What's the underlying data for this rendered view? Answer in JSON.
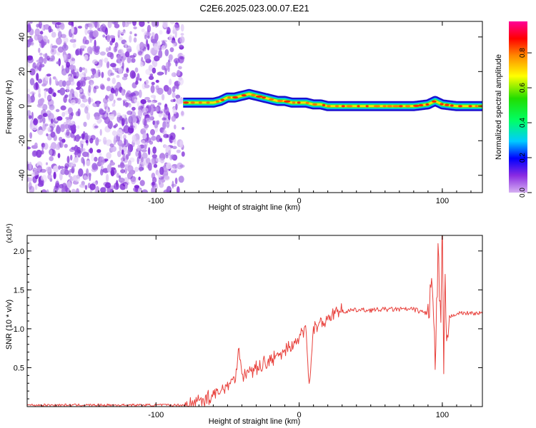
{
  "figure": {
    "title": "C2E6.2025.023.00.07.E21"
  },
  "chart_data": [
    {
      "type": "heatmap",
      "title": "C2E6.2025.023.00.07.E21",
      "xlabel": "Height of straight line (km)",
      "ylabel": "Frequency (Hz)",
      "xlim": [
        -190,
        128
      ],
      "ylim": [
        -50,
        49
      ],
      "xticks": [
        -100,
        0,
        100
      ],
      "xtick_labels": [
        "-100",
        "0",
        "100"
      ],
      "yticks": [
        -40,
        -20,
        0,
        20,
        40
      ],
      "ytick_labels": [
        "-40",
        "-20",
        "0",
        "20",
        "40"
      ],
      "colorbar": {
        "label": "Normalized spectral amplitude",
        "range": [
          0,
          0.98
        ],
        "ticks": [
          0,
          0.2,
          0.4,
          0.6,
          0.8
        ],
        "tick_labels": [
          "0.0",
          "0.2",
          "0.4",
          "0.6",
          "0.8"
        ]
      },
      "noise_region_x": [
        -190,
        -81
      ],
      "ridge": {
        "x": [
          -81,
          -75,
          -70,
          -65,
          -60,
          -55,
          -50,
          -45,
          -40,
          -35,
          -30,
          -25,
          -20,
          -15,
          -10,
          -5,
          0,
          5,
          10,
          15,
          20,
          30,
          40,
          50,
          60,
          70,
          80,
          90,
          95,
          100,
          110,
          120,
          128
        ],
        "freq": [
          2,
          2,
          2,
          2,
          2,
          3,
          5,
          5,
          6,
          7,
          6,
          5,
          4,
          3,
          3,
          2,
          2,
          2,
          1,
          1,
          0,
          0,
          0,
          0,
          0,
          0,
          0,
          1,
          3,
          1,
          0,
          0,
          0
        ]
      }
    },
    {
      "type": "line",
      "xlabel": "Height of straight line (km)",
      "ylabel": "SNR (10 * v/v)",
      "y_multiplier": "(x10⁴)",
      "xlim": [
        -190,
        128
      ],
      "ylim": [
        0,
        2.2
      ],
      "xticks": [
        -100,
        0,
        100
      ],
      "xtick_labels": [
        "-100",
        "0",
        "100"
      ],
      "yticks": [
        0.5,
        1.0,
        1.5,
        2.0
      ],
      "ytick_labels": [
        "0.5",
        "1.0",
        "1.5",
        "2.0"
      ],
      "color": "#e8413c",
      "series": [
        {
          "x": [
            -190,
            -150,
            -100,
            -80,
            -75,
            -70,
            -65,
            -60,
            -55,
            -50,
            -45,
            -42,
            -40,
            -35,
            -30,
            -25,
            -20,
            -15,
            -10,
            -5,
            0,
            5,
            7,
            10,
            15,
            20,
            25,
            30,
            40,
            50,
            60,
            70,
            80,
            85,
            90,
            93,
            95,
            97,
            99,
            100,
            101,
            102,
            103,
            105,
            110,
            120,
            128
          ],
          "y": [
            0.02,
            0.02,
            0.02,
            0.02,
            0.04,
            0.08,
            0.1,
            0.15,
            0.18,
            0.3,
            0.35,
            0.75,
            0.4,
            0.45,
            0.5,
            0.55,
            0.6,
            0.65,
            0.72,
            0.8,
            0.88,
            1.0,
            0.3,
            1.0,
            1.05,
            1.15,
            1.22,
            1.22,
            1.24,
            1.24,
            1.25,
            1.25,
            1.25,
            1.22,
            1.2,
            1.6,
            0.5,
            1.9,
            1.0,
            2.2,
            0.6,
            1.7,
            0.6,
            1.15,
            1.2,
            1.2,
            1.2
          ]
        }
      ]
    }
  ]
}
